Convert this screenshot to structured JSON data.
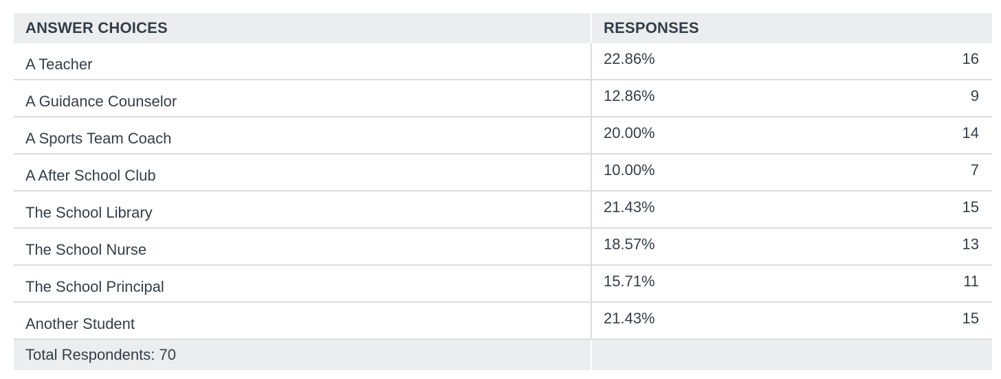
{
  "header": {
    "col1": "ANSWER CHOICES",
    "col2": "RESPONSES"
  },
  "chart_data": {
    "type": "table",
    "columns": [
      "ANSWER CHOICES",
      "RESPONSES"
    ],
    "rows": [
      {
        "choice": "A Teacher",
        "percent": "22.86%",
        "count": "16"
      },
      {
        "choice": "A Guidance Counselor",
        "percent": "12.86%",
        "count": "9"
      },
      {
        "choice": "A Sports Team Coach",
        "percent": "20.00%",
        "count": "14"
      },
      {
        "choice": "A After School Club",
        "percent": "10.00%",
        "count": "7"
      },
      {
        "choice": "The School Library",
        "percent": "21.43%",
        "count": "15"
      },
      {
        "choice": "The School Nurse",
        "percent": "18.57%",
        "count": "13"
      },
      {
        "choice": "The School Principal",
        "percent": "15.71%",
        "count": "11"
      },
      {
        "choice": "Another Student",
        "percent": "21.43%",
        "count": "15"
      }
    ]
  },
  "footer": {
    "total_label": "Total Respondents: 70"
  }
}
